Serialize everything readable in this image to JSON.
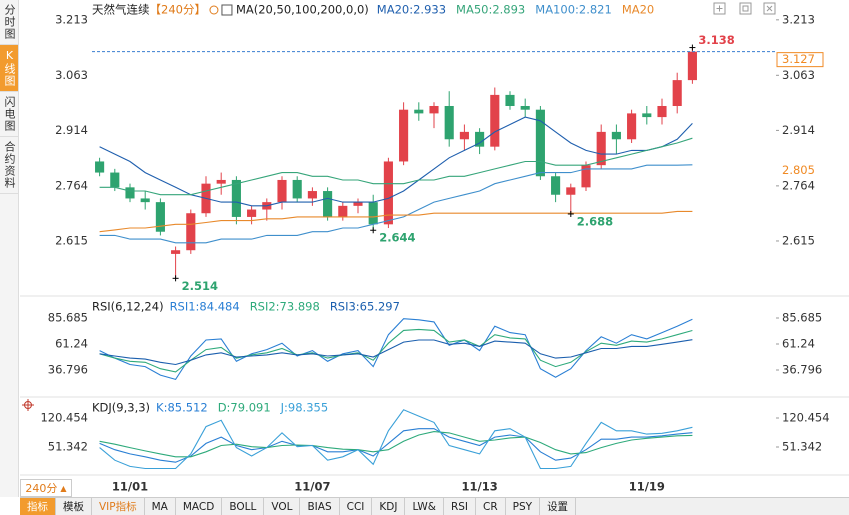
{
  "sidebar": [
    {
      "label": "分时图"
    },
    {
      "label": "K线图",
      "active": true
    },
    {
      "label": "闪电图"
    },
    {
      "label": "合约资料"
    }
  ],
  "chart_data": [
    {
      "type": "candlestick",
      "title": "天然气连续",
      "period": "【240分】",
      "indicator": "MA(20,50,100,200,0,0)",
      "up_color": "#e2424a",
      "down_color": "#2ea36f",
      "categories": [
        null,
        null,
        "11/01",
        null,
        null,
        null,
        null,
        null,
        null,
        null,
        null,
        null,
        null,
        null,
        "11/07",
        null,
        null,
        null,
        null,
        null,
        null,
        null,
        null,
        null,
        null,
        "11/13",
        null,
        null,
        null,
        null,
        null,
        null,
        null,
        null,
        null,
        null,
        "11/19",
        null,
        null,
        null
      ],
      "candles": [
        {
          "open": 2.83,
          "high": 2.84,
          "low": 2.79,
          "close": 2.8
        },
        {
          "open": 2.8,
          "high": 2.81,
          "low": 2.75,
          "close": 2.76
        },
        {
          "open": 2.76,
          "high": 2.77,
          "low": 2.72,
          "close": 2.73
        },
        {
          "open": 2.73,
          "high": 2.75,
          "low": 2.7,
          "close": 2.72
        },
        {
          "open": 2.72,
          "high": 2.73,
          "low": 2.63,
          "close": 2.64
        },
        {
          "open": 2.58,
          "high": 2.6,
          "low": 2.514,
          "close": 2.59
        },
        {
          "open": 2.59,
          "high": 2.7,
          "low": 2.58,
          "close": 2.69
        },
        {
          "open": 2.69,
          "high": 2.79,
          "low": 2.68,
          "close": 2.77
        },
        {
          "open": 2.77,
          "high": 2.8,
          "low": 2.74,
          "close": 2.78
        },
        {
          "open": 2.78,
          "high": 2.79,
          "low": 2.66,
          "close": 2.68
        },
        {
          "open": 2.68,
          "high": 2.71,
          "low": 2.66,
          "close": 2.7
        },
        {
          "open": 2.7,
          "high": 2.73,
          "low": 2.67,
          "close": 2.72
        },
        {
          "open": 2.72,
          "high": 2.79,
          "low": 2.7,
          "close": 2.78
        },
        {
          "open": 2.78,
          "high": 2.79,
          "low": 2.72,
          "close": 2.73
        },
        {
          "open": 2.73,
          "high": 2.76,
          "low": 2.71,
          "close": 2.75
        },
        {
          "open": 2.75,
          "high": 2.76,
          "low": 2.67,
          "close": 2.68
        },
        {
          "open": 2.68,
          "high": 2.72,
          "low": 2.67,
          "close": 2.71
        },
        {
          "open": 2.71,
          "high": 2.73,
          "low": 2.69,
          "close": 2.72
        },
        {
          "open": 2.72,
          "high": 2.74,
          "low": 2.644,
          "close": 2.66
        },
        {
          "open": 2.66,
          "high": 2.84,
          "low": 2.65,
          "close": 2.83
        },
        {
          "open": 2.83,
          "high": 2.99,
          "low": 2.82,
          "close": 2.97
        },
        {
          "open": 2.97,
          "high": 2.99,
          "low": 2.94,
          "close": 2.96
        },
        {
          "open": 2.96,
          "high": 2.99,
          "low": 2.92,
          "close": 2.98
        },
        {
          "open": 2.98,
          "high": 3.02,
          "low": 2.87,
          "close": 2.89
        },
        {
          "open": 2.89,
          "high": 2.93,
          "low": 2.86,
          "close": 2.91
        },
        {
          "open": 2.91,
          "high": 2.92,
          "low": 2.85,
          "close": 2.87
        },
        {
          "open": 2.87,
          "high": 3.03,
          "low": 2.86,
          "close": 3.01
        },
        {
          "open": 3.01,
          "high": 3.02,
          "low": 2.97,
          "close": 2.98
        },
        {
          "open": 2.98,
          "high": 3.0,
          "low": 2.95,
          "close": 2.97
        },
        {
          "open": 2.97,
          "high": 2.98,
          "low": 2.78,
          "close": 2.79
        },
        {
          "open": 2.79,
          "high": 2.8,
          "low": 2.72,
          "close": 2.74
        },
        {
          "open": 2.74,
          "high": 2.77,
          "low": 2.688,
          "close": 2.76
        },
        {
          "open": 2.76,
          "high": 2.83,
          "low": 2.75,
          "close": 2.82
        },
        {
          "open": 2.82,
          "high": 2.93,
          "low": 2.81,
          "close": 2.91
        },
        {
          "open": 2.91,
          "high": 2.93,
          "low": 2.85,
          "close": 2.89
        },
        {
          "open": 2.89,
          "high": 2.97,
          "low": 2.88,
          "close": 2.96
        },
        {
          "open": 2.96,
          "high": 2.98,
          "low": 2.93,
          "close": 2.95
        },
        {
          "open": 2.95,
          "high": 3.0,
          "low": 2.93,
          "close": 2.98
        },
        {
          "open": 2.98,
          "high": 3.07,
          "low": 2.96,
          "close": 3.05
        },
        {
          "open": 3.05,
          "high": 3.138,
          "low": 3.04,
          "close": 3.127
        }
      ],
      "series": [
        {
          "name": "MA20:2.933",
          "color": "#1f5fae",
          "values": [
            2.87,
            2.85,
            2.83,
            2.8,
            2.78,
            2.76,
            2.74,
            2.73,
            2.72,
            2.72,
            2.71,
            2.71,
            2.72,
            2.72,
            2.72,
            2.73,
            2.72,
            2.72,
            2.72,
            2.73,
            2.75,
            2.78,
            2.81,
            2.84,
            2.86,
            2.88,
            2.91,
            2.93,
            2.95,
            2.94,
            2.91,
            2.88,
            2.86,
            2.85,
            2.85,
            2.86,
            2.86,
            2.87,
            2.89,
            2.933
          ]
        },
        {
          "name": "MA50:2.893",
          "color": "#36a57a",
          "values": [
            2.76,
            2.76,
            2.75,
            2.75,
            2.74,
            2.74,
            2.74,
            2.75,
            2.76,
            2.77,
            2.78,
            2.79,
            2.8,
            2.8,
            2.79,
            2.79,
            2.78,
            2.78,
            2.77,
            2.77,
            2.77,
            2.78,
            2.78,
            2.79,
            2.79,
            2.8,
            2.81,
            2.82,
            2.83,
            2.83,
            2.82,
            2.82,
            2.82,
            2.83,
            2.84,
            2.85,
            2.86,
            2.87,
            2.88,
            2.893
          ]
        },
        {
          "name": "MA100:2.821",
          "color": "#3f8fcc",
          "values": [
            2.63,
            2.63,
            2.62,
            2.62,
            2.62,
            2.61,
            2.61,
            2.61,
            2.62,
            2.62,
            2.62,
            2.63,
            2.63,
            2.63,
            2.64,
            2.64,
            2.65,
            2.65,
            2.66,
            2.67,
            2.68,
            2.7,
            2.72,
            2.73,
            2.74,
            2.75,
            2.77,
            2.78,
            2.79,
            2.8,
            2.8,
            2.8,
            2.81,
            2.81,
            2.81,
            2.81,
            2.82,
            2.82,
            2.82,
            2.821
          ]
        },
        {
          "name": "MA20",
          "color": "#e8892b",
          "values": [
            2.64,
            2.645,
            2.65,
            2.65,
            2.655,
            2.66,
            2.66,
            2.665,
            2.67,
            2.67,
            2.67,
            2.675,
            2.675,
            2.68,
            2.68,
            2.68,
            2.68,
            2.68,
            2.68,
            2.685,
            2.685,
            2.685,
            2.69,
            2.69,
            2.69,
            2.69,
            2.69,
            2.69,
            2.69,
            2.69,
            2.69,
            2.69,
            2.69,
            2.69,
            2.69,
            2.69,
            2.69,
            2.69,
            2.695,
            2.695
          ]
        }
      ],
      "ylim": [
        2.477,
        3.245
      ],
      "yticks": [
        3.213,
        3.063,
        2.914,
        2.764,
        2.615
      ],
      "annotations": [
        {
          "at": 39,
          "value": 3.138,
          "color": "#e2424a"
        },
        {
          "at": 5,
          "value": 2.514,
          "color": "#2ea36f"
        },
        {
          "at": 18,
          "value": 2.644,
          "color": "#2ea36f"
        },
        {
          "at": 31,
          "value": 2.688,
          "color": "#2ea36f"
        }
      ],
      "price_tags": [
        {
          "value": 3.127,
          "color": "#f08a24",
          "boxed": true,
          "dashed": true
        },
        {
          "value": 2.805,
          "color": "#f08a24"
        }
      ]
    },
    {
      "type": "line",
      "title": "RSI(6,12,24)",
      "series": [
        {
          "name": "RSI1:84.484",
          "color": "#2a7fd4",
          "values": [
            55,
            48,
            42,
            40,
            32,
            28,
            50,
            65,
            66,
            45,
            52,
            56,
            62,
            50,
            55,
            45,
            52,
            55,
            40,
            70,
            85,
            84,
            82,
            60,
            65,
            55,
            78,
            72,
            70,
            38,
            30,
            38,
            55,
            68,
            62,
            70,
            66,
            72,
            78,
            84.484
          ]
        },
        {
          "name": "RSI2:73.898",
          "color": "#2eaa7b",
          "values": [
            52,
            48,
            45,
            44,
            38,
            35,
            46,
            56,
            58,
            48,
            51,
            53,
            57,
            51,
            53,
            48,
            51,
            53,
            46,
            62,
            74,
            75,
            74,
            63,
            65,
            59,
            70,
            67,
            66,
            46,
            40,
            44,
            54,
            62,
            60,
            64,
            63,
            66,
            70,
            73.898
          ]
        },
        {
          "name": "RSI3:65.297",
          "color": "#1b5fae",
          "values": [
            52,
            50,
            48,
            47,
            44,
            42,
            46,
            51,
            53,
            49,
            50,
            51,
            53,
            51,
            52,
            50,
            51,
            52,
            49,
            56,
            63,
            65,
            65,
            61,
            62,
            59,
            64,
            63,
            62,
            52,
            48,
            49,
            53,
            57,
            57,
            59,
            59,
            61,
            63,
            65.297
          ]
        }
      ],
      "ylim": [
        13.3,
        102.6
      ],
      "yticks": [
        85.685,
        61.24,
        36.796
      ]
    },
    {
      "type": "line",
      "title": "KDJ(9,3,3)",
      "series": [
        {
          "name": "K:85.512",
          "color": "#2a7fd4",
          "values": [
            60,
            45,
            35,
            28,
            20,
            15,
            30,
            60,
            75,
            55,
            45,
            50,
            65,
            55,
            55,
            40,
            40,
            45,
            30,
            60,
            90,
            95,
            95,
            75,
            65,
            55,
            75,
            80,
            75,
            40,
            20,
            25,
            45,
            70,
            70,
            75,
            75,
            78,
            82,
            85.512
          ]
        },
        {
          "name": "D:79.091",
          "color": "#2eaa7b",
          "values": [
            65,
            58,
            50,
            42,
            35,
            28,
            28,
            40,
            55,
            58,
            52,
            50,
            55,
            56,
            55,
            50,
            46,
            45,
            40,
            45,
            65,
            80,
            88,
            85,
            75,
            65,
            68,
            73,
            75,
            62,
            45,
            35,
            38,
            50,
            60,
            68,
            72,
            75,
            78,
            79.091
          ]
        },
        {
          "name": "J:98.355",
          "color": "#3aa0d8",
          "values": [
            50,
            20,
            5,
            0,
            0,
            0,
            35,
            100,
            115,
            50,
            30,
            50,
            85,
            52,
            55,
            20,
            28,
            45,
            10,
            90,
            140,
            125,
            110,
            55,
            45,
            35,
            90,
            95,
            75,
            0,
            0,
            5,
            60,
            110,
            90,
            90,
            82,
            84,
            90,
            98.355
          ]
        }
      ],
      "ylim": [
        -3.47,
        163.35
      ],
      "yticks": [
        120.454,
        51.342
      ]
    }
  ],
  "toolbar": {
    "period": "240分",
    "buttons": [
      {
        "label": "指标",
        "style": "active"
      },
      {
        "label": "模板"
      },
      {
        "label": "VIP指标",
        "style": "vip"
      },
      {
        "label": "MA"
      },
      {
        "label": "MACD"
      },
      {
        "label": "BOLL"
      },
      {
        "label": "VOL"
      },
      {
        "label": "BIAS"
      },
      {
        "label": "CCI"
      },
      {
        "label": "KDJ"
      },
      {
        "label": "LW&"
      },
      {
        "label": "RSI"
      },
      {
        "label": "CR"
      },
      {
        "label": "PSY"
      },
      {
        "label": "设置"
      }
    ]
  }
}
